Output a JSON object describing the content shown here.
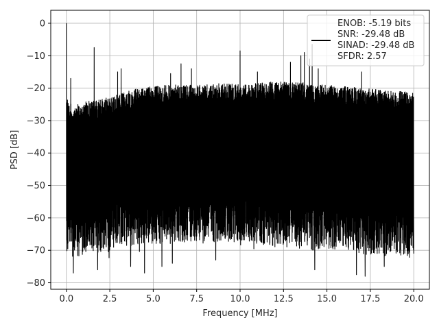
{
  "chart_data": {
    "type": "line",
    "xlabel": "Frequency [MHz]",
    "ylabel": "PSD [dB]",
    "xlim": [
      -0.9,
      20.9
    ],
    "ylim": [
      -82,
      4
    ],
    "xticks": [
      "0.0",
      "2.5",
      "5.0",
      "7.5",
      "10.0",
      "12.5",
      "15.0",
      "17.5",
      "20.0"
    ],
    "yticks": [
      "0",
      "−10",
      "−20",
      "−30",
      "−40",
      "−50",
      "−60",
      "−70",
      "−80"
    ],
    "grid": true,
    "legend_position": "top-right",
    "series": [
      {
        "name": "ENOB: -5.19 bits\nSNR: -29.48 dB\nSINAD: -29.48 dB\nSFDR: 2.57",
        "color": "#000000",
        "upper_envelope": {
          "x": [
            0.0,
            0.05,
            0.2,
            0.5,
            1.0,
            1.5,
            2.0,
            2.5,
            3.0,
            3.5,
            4.0,
            5.0,
            6.0,
            7.0,
            8.0,
            9.0,
            10.0,
            11.0,
            12.0,
            13.0,
            14.0,
            15.0,
            16.0,
            17.0,
            18.0,
            19.0,
            20.0
          ],
          "y": [
            -25,
            -22,
            -25,
            -24.5,
            -24,
            -24,
            -23.5,
            -22.5,
            -22,
            -21,
            -20,
            -19.5,
            -19,
            -19,
            -19,
            -18.5,
            -18.5,
            -18.5,
            -18,
            -18,
            -18.5,
            -19,
            -19.5,
            -20,
            -20.5,
            -21,
            -21
          ]
        },
        "lower_envelope": {
          "x": [
            0.0,
            1.0,
            2.0,
            3.0,
            4.0,
            5.0,
            6.0,
            7.0,
            8.0,
            9.0,
            10.0,
            11.0,
            12.0,
            13.0,
            14.0,
            15.0,
            16.0,
            17.0,
            18.0,
            19.0,
            20.0
          ],
          "y": [
            -64,
            -64,
            -63,
            -62,
            -61,
            -60,
            -60,
            -60,
            -60,
            -59,
            -59,
            -60,
            -61,
            -61,
            -62,
            -62,
            -62,
            -63,
            -64,
            -64,
            -65
          ]
        },
        "peaks": [
          {
            "x": 0.0,
            "y": 0.0
          },
          {
            "x": 1.6,
            "y": -7.5
          },
          {
            "x": 0.25,
            "y": -17
          },
          {
            "x": 2.95,
            "y": -15
          },
          {
            "x": 3.15,
            "y": -14
          },
          {
            "x": 6.0,
            "y": -15.5
          },
          {
            "x": 6.6,
            "y": -12.5
          },
          {
            "x": 7.2,
            "y": -14
          },
          {
            "x": 10.0,
            "y": -8.5
          },
          {
            "x": 11.0,
            "y": -15
          },
          {
            "x": 12.9,
            "y": -12
          },
          {
            "x": 13.5,
            "y": -10
          },
          {
            "x": 13.7,
            "y": -9
          },
          {
            "x": 14.0,
            "y": -11
          },
          {
            "x": 14.15,
            "y": -6.5
          },
          {
            "x": 14.5,
            "y": -14
          },
          {
            "x": 17.0,
            "y": -15
          }
        ],
        "dips": [
          {
            "x": 0.4,
            "y": -77
          },
          {
            "x": 1.8,
            "y": -76
          },
          {
            "x": 3.7,
            "y": -75
          },
          {
            "x": 4.5,
            "y": -77
          },
          {
            "x": 5.5,
            "y": -75
          },
          {
            "x": 6.1,
            "y": -74
          },
          {
            "x": 8.6,
            "y": -73
          },
          {
            "x": 14.3,
            "y": -76
          },
          {
            "x": 16.7,
            "y": -77.5
          },
          {
            "x": 17.2,
            "y": -78
          },
          {
            "x": 18.3,
            "y": -75
          },
          {
            "x": 20.0,
            "y": -71
          }
        ]
      }
    ]
  }
}
